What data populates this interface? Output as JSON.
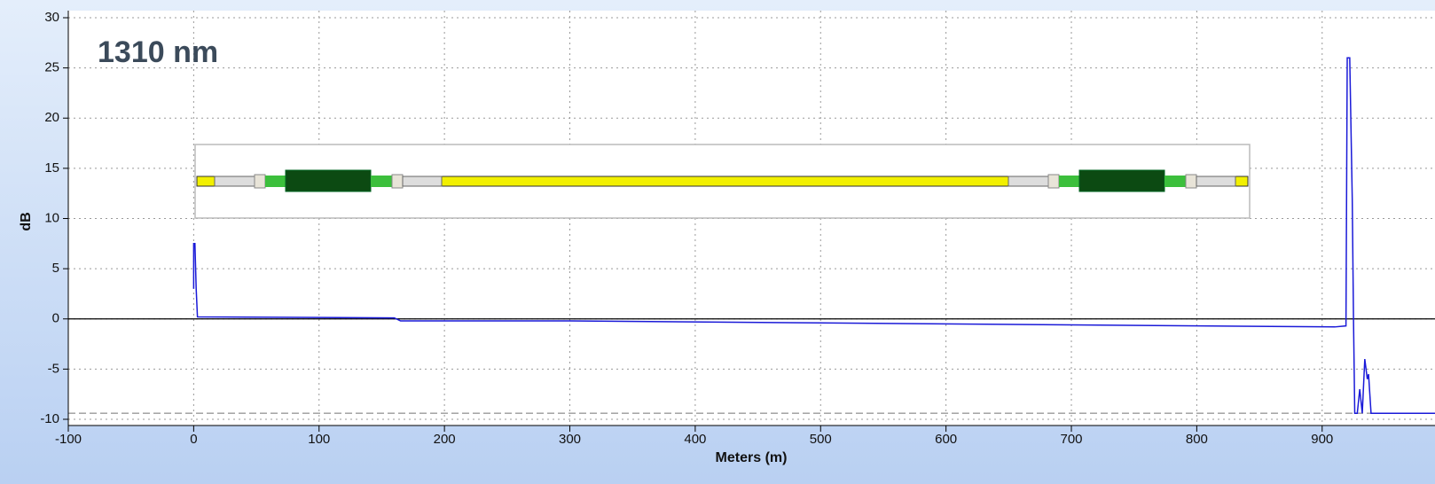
{
  "chart_data": {
    "type": "line",
    "label": "1310 nm",
    "x_label": "Meters (m)",
    "y_label": "dB",
    "x": [
      0,
      0,
      1,
      2,
      3,
      160,
      165,
      300,
      500,
      700,
      910,
      919,
      920,
      922,
      924,
      925,
      926,
      928,
      930,
      932,
      934,
      936,
      937,
      939,
      990
    ],
    "series": [
      {
        "color": "#1a1ad8",
        "values": [
          3,
          7.5,
          7.5,
          3,
          0.2,
          0.1,
          -0.2,
          -0.2,
          -0.4,
          -0.6,
          -0.8,
          -0.7,
          26,
          26,
          12,
          0,
          -9.4,
          -9.4,
          -7,
          -9.4,
          -4,
          -6,
          -5.5,
          -9.4,
          -9.4
        ]
      }
    ],
    "hlines": [
      {
        "value": 0,
        "color": "#000000",
        "style": "solid"
      },
      {
        "value": -9.4,
        "color": "#999999",
        "style": "dashed"
      }
    ],
    "xlim": [
      -100,
      990
    ],
    "ylim": [
      -10,
      30
    ],
    "xticks": [
      -100,
      0,
      100,
      200,
      300,
      400,
      500,
      600,
      700,
      800,
      900
    ],
    "yticks": [
      -10,
      -5,
      0,
      5,
      10,
      15,
      20,
      25,
      30
    ],
    "grid": true
  }
}
